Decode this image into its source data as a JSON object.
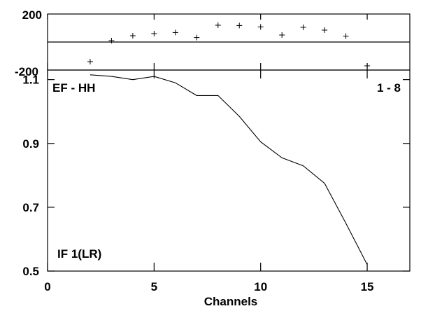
{
  "chart_data": [
    {
      "type": "scatter",
      "panel": "phase",
      "x": [
        2,
        3,
        4,
        5,
        6,
        7,
        8,
        9,
        10,
        11,
        12,
        13,
        14,
        15
      ],
      "y": [
        -140,
        10,
        45,
        60,
        68,
        32,
        120,
        118,
        108,
        50,
        105,
        85,
        42,
        -170
      ],
      "xlim": [
        0,
        17
      ],
      "ylim": [
        -200,
        200
      ],
      "yticks": [
        "200",
        "-200"
      ],
      "marker": "+",
      "color": "#000000"
    },
    {
      "type": "line",
      "panel": "amplitude",
      "x": [
        2,
        3,
        4,
        5,
        6,
        7,
        8,
        9,
        10,
        11,
        12,
        13,
        14,
        15
      ],
      "y": [
        1.115,
        1.11,
        1.1,
        1.11,
        1.09,
        1.05,
        1.05,
        0.985,
        0.905,
        0.855,
        0.83,
        0.775,
        0.65,
        0.52
      ],
      "xlim": [
        0,
        17
      ],
      "ylim": [
        0.5,
        1.13
      ],
      "xticks": [
        "0",
        "5",
        "10",
        "15"
      ],
      "yticks": [
        "1.1",
        "0.9",
        "0.7",
        "0.5"
      ],
      "xlabel": "Channels",
      "color": "#000000"
    }
  ],
  "annotations": {
    "baseline": "EF - HH",
    "range": "1 - 8",
    "if_label": "IF 1(LR)"
  }
}
